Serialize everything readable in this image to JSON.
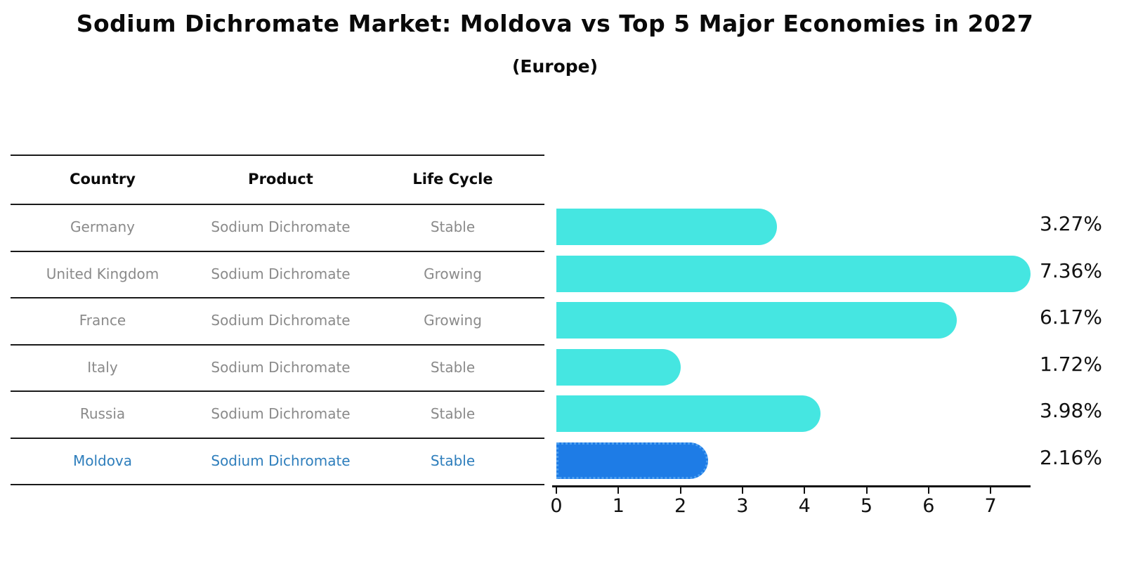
{
  "header": {
    "title": "Sodium Dichromate Market: Moldova vs Top 5 Major Economies in 2027",
    "subtitle": "(Europe)"
  },
  "table": {
    "columns": [
      "Country",
      "Product",
      "Life Cycle"
    ],
    "rows": [
      {
        "country": "Germany",
        "product": "Sodium Dichromate",
        "life_cycle": "Stable"
      },
      {
        "country": "United Kingdom",
        "product": "Sodium Dichromate",
        "life_cycle": "Growing"
      },
      {
        "country": "France",
        "product": "Sodium Dichromate",
        "life_cycle": "Growing"
      },
      {
        "country": "Italy",
        "product": "Sodium Dichromate",
        "life_cycle": "Stable"
      },
      {
        "country": "Russia",
        "product": "Sodium Dichromate",
        "life_cycle": "Stable"
      },
      {
        "country": "Moldova",
        "product": "Sodium Dichromate",
        "life_cycle": "Stable"
      }
    ],
    "highlight_row": "Moldova"
  },
  "chart_data": {
    "type": "bar",
    "orientation": "horizontal",
    "title": "Sodium Dichromate Market: Moldova vs Top 5 Major Economies in 2027",
    "subtitle": "(Europe)",
    "categories": [
      "Germany",
      "United Kingdom",
      "France",
      "Italy",
      "Russia",
      "Moldova"
    ],
    "values": [
      3.27,
      7.36,
      6.17,
      1.72,
      3.98,
      2.16
    ],
    "value_labels": [
      "3.27%",
      "7.36%",
      "6.17%",
      "1.72%",
      "3.98%",
      "2.16%"
    ],
    "xlim": [
      0,
      7.7
    ],
    "xticks": [
      0,
      1,
      2,
      3,
      4,
      5,
      6,
      7
    ],
    "grid": false,
    "legend": "none",
    "highlight_index": 5,
    "bar_color": "#45E6E1",
    "highlight_color": "#1E7CE6",
    "highlight_text_color": "#2E7EBC",
    "value_label_position": "right-outside"
  }
}
